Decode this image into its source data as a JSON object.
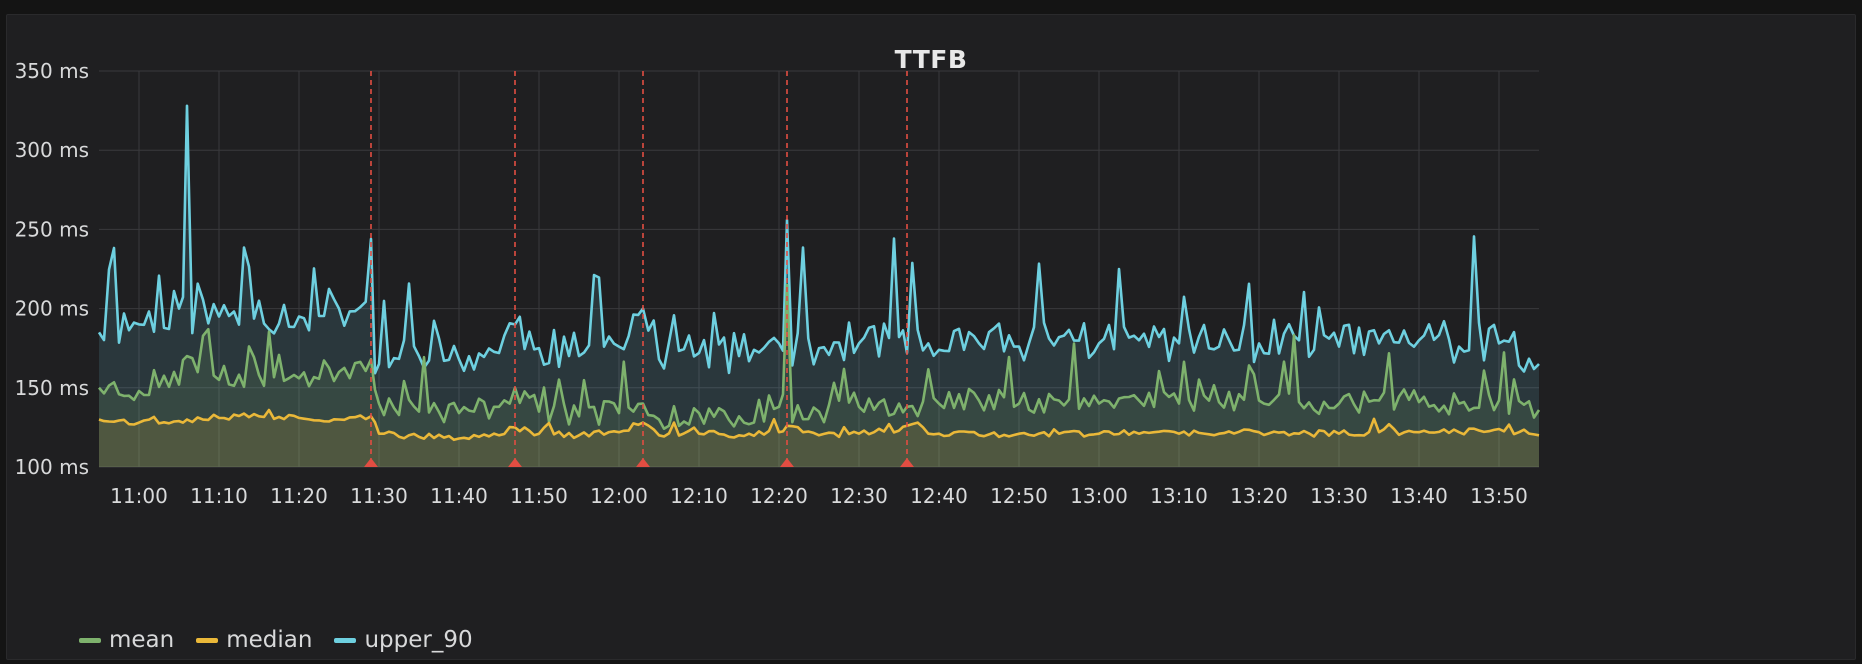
{
  "panel": {
    "title": "TTFB"
  },
  "colors": {
    "mean": "#7eb26d",
    "median": "#eab839",
    "upper_90": "#6ed0e0",
    "annotation": "#e24d42"
  },
  "chart_data": {
    "type": "area",
    "title": "TTFB",
    "x_range": [
      "10:55",
      "13:55"
    ],
    "ylim": [
      100,
      350
    ],
    "y_unit": "ms",
    "y_ticks": [
      "100 ms",
      "150 ms",
      "200 ms",
      "250 ms",
      "300 ms",
      "350 ms"
    ],
    "x_ticks": [
      "11:00",
      "11:10",
      "11:20",
      "11:30",
      "11:40",
      "11:50",
      "12:00",
      "12:10",
      "12:20",
      "12:30",
      "12:40",
      "12:50",
      "13:00",
      "13:10",
      "13:20",
      "13:30",
      "13:40",
      "13:50"
    ],
    "grid": true,
    "legend": "bottom-left",
    "annotations": [
      "11:29",
      "11:47",
      "12:03",
      "12:21",
      "12:36"
    ],
    "series": [
      {
        "name": "upper_90",
        "x": [
          "10:55",
          "11:00",
          "11:05",
          "11:06",
          "11:10",
          "11:15",
          "11:20",
          "11:25",
          "11:29",
          "11:30",
          "11:35",
          "11:40",
          "11:45",
          "11:47",
          "11:50",
          "11:55",
          "12:00",
          "12:03",
          "12:05",
          "12:10",
          "12:15",
          "12:20",
          "12:21",
          "12:25",
          "12:30",
          "12:35",
          "12:36",
          "12:40",
          "12:45",
          "12:50",
          "12:55",
          "13:00",
          "13:05",
          "13:10",
          "13:15",
          "13:20",
          "13:25",
          "13:30",
          "13:35",
          "13:40",
          "13:45",
          "13:50",
          "13:55"
        ],
        "values": [
          185,
          190,
          200,
          328,
          195,
          205,
          195,
          200,
          244,
          165,
          170,
          168,
          172,
          190,
          175,
          170,
          176,
          200,
          168,
          172,
          170,
          178,
          256,
          175,
          178,
          182,
          172,
          174,
          178,
          176,
          182,
          178,
          180,
          178,
          176,
          178,
          180,
          176,
          178,
          180,
          176,
          178,
          165
        ]
      },
      {
        "name": "mean",
        "x": [
          "10:55",
          "11:00",
          "11:05",
          "11:06",
          "11:10",
          "11:15",
          "11:20",
          "11:25",
          "11:29",
          "11:30",
          "11:35",
          "11:40",
          "11:45",
          "11:47",
          "11:50",
          "11:55",
          "12:00",
          "12:03",
          "12:05",
          "12:10",
          "12:15",
          "12:20",
          "12:21",
          "12:25",
          "12:30",
          "12:35",
          "12:36",
          "12:40",
          "12:45",
          "12:50",
          "12:55",
          "13:00",
          "13:05",
          "13:10",
          "13:15",
          "13:20",
          "13:25",
          "13:30",
          "13:35",
          "13:40",
          "13:45",
          "13:50",
          "13:55"
        ],
        "values": [
          150,
          148,
          152,
          170,
          155,
          158,
          156,
          160,
          168,
          140,
          135,
          134,
          138,
          150,
          135,
          132,
          134,
          140,
          130,
          134,
          132,
          138,
          215,
          135,
          138,
          140,
          138,
          140,
          142,
          140,
          142,
          140,
          142,
          140,
          141,
          142,
          141,
          140,
          142,
          141,
          140,
          142,
          136
        ]
      },
      {
        "name": "median",
        "x": [
          "10:55",
          "11:00",
          "11:05",
          "11:06",
          "11:10",
          "11:15",
          "11:20",
          "11:25",
          "11:29",
          "11:30",
          "11:35",
          "11:40",
          "11:45",
          "11:47",
          "11:50",
          "11:55",
          "12:00",
          "12:03",
          "12:05",
          "12:10",
          "12:15",
          "12:20",
          "12:21",
          "12:25",
          "12:30",
          "12:35",
          "12:36",
          "12:40",
          "12:45",
          "12:50",
          "12:55",
          "13:00",
          "13:05",
          "13:10",
          "13:15",
          "13:20",
          "13:25",
          "13:30",
          "13:35",
          "13:40",
          "13:45",
          "13:50",
          "13:55"
        ],
        "values": [
          130,
          128,
          129,
          130,
          131,
          132,
          131,
          130,
          132,
          121,
          119,
          118,
          120,
          125,
          121,
          120,
          122,
          128,
          120,
          121,
          120,
          122,
          126,
          120,
          121,
          123,
          126,
          121,
          120,
          121,
          121,
          121,
          121,
          121,
          121,
          122,
          121,
          121,
          122,
          122,
          122,
          124,
          120
        ]
      }
    ]
  },
  "legend": [
    {
      "key": "mean",
      "label": "mean"
    },
    {
      "key": "median",
      "label": "median"
    },
    {
      "key": "upper_90",
      "label": "upper_90"
    }
  ]
}
